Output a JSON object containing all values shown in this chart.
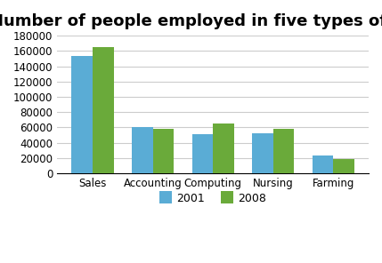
{
  "title": "Number of people employed in five types of work",
  "categories": [
    "Sales",
    "Accounting",
    "Computing",
    "Nursing",
    "Farming"
  ],
  "values_2001": [
    154000,
    61000,
    51000,
    52000,
    23000
  ],
  "values_2008": [
    165000,
    58000,
    65000,
    58000,
    19000
  ],
  "bar_color_2001": "#5aacd5",
  "bar_color_2008": "#6aaa3a",
  "ylim": [
    0,
    180000
  ],
  "yticks": [
    0,
    20000,
    40000,
    60000,
    80000,
    100000,
    120000,
    140000,
    160000,
    180000
  ],
  "legend_labels": [
    "2001",
    "2008"
  ],
  "bar_width": 0.35,
  "title_fontsize": 13,
  "tick_fontsize": 8.5,
  "legend_fontsize": 9,
  "background_color": "#ffffff",
  "grid_color": "#cccccc"
}
